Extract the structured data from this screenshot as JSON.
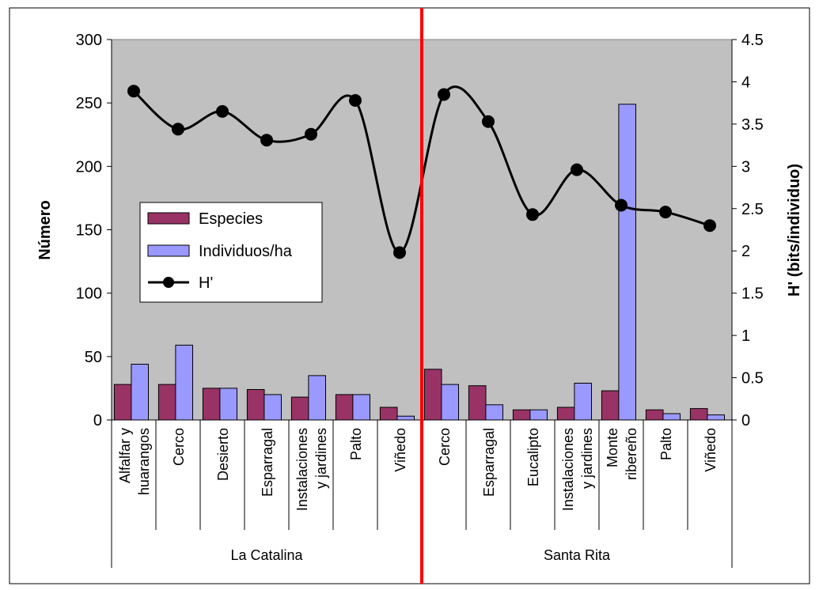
{
  "chart_data": {
    "type": "bar",
    "groups": [
      {
        "label": "La Catalina",
        "categories": [
          [
            "Alfalfar y",
            "huarangos"
          ],
          [
            "Cerco"
          ],
          [
            "Desierto"
          ],
          [
            "Esparragal"
          ],
          [
            "Instalaciones",
            "y jardines"
          ],
          [
            "Palto"
          ],
          [
            "Viñedo"
          ]
        ]
      },
      {
        "label": "Santa Rita",
        "categories": [
          [
            "Cerco"
          ],
          [
            "Esparragal"
          ],
          [
            "Eucalipto"
          ],
          [
            "Instalaciones",
            "y jardines"
          ],
          [
            "Monte",
            "ribereño"
          ],
          [
            "Palto"
          ],
          [
            "Viñedo"
          ]
        ]
      }
    ],
    "series": [
      {
        "name": "Especies",
        "type": "bar",
        "axis": "left",
        "color": "#993366",
        "values": [
          28,
          28,
          25,
          24,
          18,
          20,
          10,
          40,
          27,
          8,
          10,
          23,
          8,
          9
        ]
      },
      {
        "name": "Individuos/ha",
        "type": "bar",
        "axis": "left",
        "color": "#9999ff",
        "values": [
          44,
          59,
          25,
          20,
          35,
          20,
          3,
          28,
          12,
          8,
          29,
          249,
          5,
          4
        ]
      },
      {
        "name": "H'",
        "type": "line",
        "axis": "right",
        "color": "#000000",
        "smooth": true,
        "values": [
          3.89,
          3.44,
          3.65,
          3.31,
          3.38,
          3.78,
          1.98,
          3.85,
          3.53,
          2.43,
          2.96,
          2.54,
          2.46,
          2.3
        ]
      }
    ],
    "ylabel": "Número",
    "y2label": "H' (bits/individuo)",
    "ylim": [
      0,
      300
    ],
    "y2lim": [
      0,
      4.5
    ],
    "yticks": [
      "0",
      "50",
      "100",
      "150",
      "200",
      "250",
      "300"
    ],
    "y2ticks": [
      "0",
      "0.5",
      "1",
      "1.5",
      "2",
      "2.5",
      "3",
      "3.5",
      "4",
      "4.5"
    ],
    "plot_background": "#c0c0c0",
    "divider_color": "#ff0000",
    "legend_position": "left-middle",
    "grid": false
  }
}
